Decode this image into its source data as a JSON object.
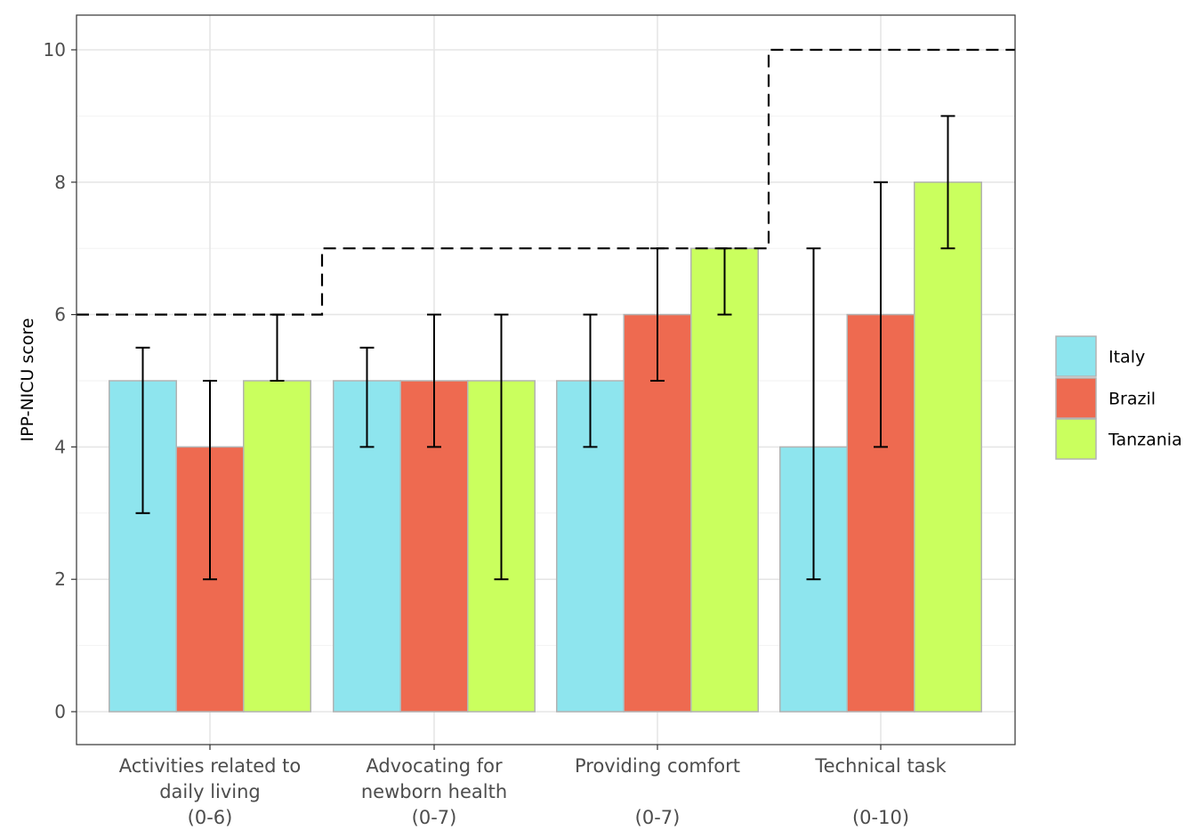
{
  "chart_data": {
    "type": "bar",
    "ylabel": "IPP-NICU score",
    "xlabel": "",
    "ylim": [
      -0.5,
      10.5
    ],
    "yticks": [
      0,
      2,
      4,
      6,
      8,
      10
    ],
    "grid": true,
    "legend_position": "right",
    "categories": [
      {
        "lines": [
          "Activities related to",
          "daily living",
          "(0-6)"
        ]
      },
      {
        "lines": [
          "Advocating for",
          "newborn health",
          "(0-7)"
        ]
      },
      {
        "lines": [
          "Providing comfort",
          "",
          "(0-7)"
        ]
      },
      {
        "lines": [
          "Technical task",
          "",
          "(0-10)"
        ]
      }
    ],
    "series": [
      {
        "name": "Italy",
        "color": "#8ee5ee",
        "values": [
          5,
          5,
          5,
          4
        ],
        "error_low": [
          3,
          4,
          4,
          2
        ],
        "error_high": [
          5.5,
          5.5,
          6,
          7
        ]
      },
      {
        "name": "Brazil",
        "color": "#ee6a50",
        "values": [
          4,
          5,
          6,
          6
        ],
        "error_low": [
          2,
          4,
          5,
          4
        ],
        "error_high": [
          5,
          6,
          7,
          8
        ]
      },
      {
        "name": "Tanzania",
        "color": "#caff5e",
        "values": [
          5,
          5,
          7,
          8
        ],
        "error_low": [
          5,
          2,
          6,
          7
        ],
        "error_high": [
          6,
          6,
          7,
          9
        ]
      }
    ],
    "max_score_line": [
      6,
      7,
      7,
      10
    ]
  }
}
